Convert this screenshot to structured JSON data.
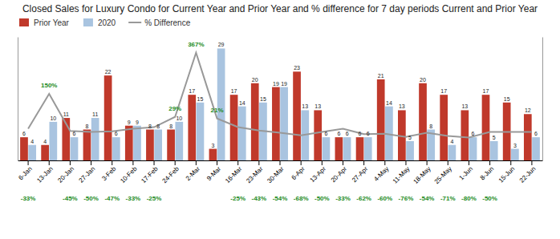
{
  "chart_data": {
    "type": "bar",
    "title": "Closed Sales for Luxury Condo for Current Year and Prior Year and % difference for 7 day periods Current and Prior Year",
    "categories": [
      "6-Jan",
      "13-Jan",
      "20-Jan",
      "27-Jan",
      "3-Feb",
      "10-Feb",
      "17-Feb",
      "24-Feb",
      "2-Mar",
      "9-Mar",
      "16-Mar",
      "23-Mar",
      "30-Mar",
      "6-Apr",
      "13-Apr",
      "20-Apr",
      "27-Apr",
      "4-May",
      "11-May",
      "18-May",
      "25-May",
      "1-Jun",
      "8-Jun",
      "15-Jun",
      "22-Jun"
    ],
    "series": [
      {
        "name": "Prior Year",
        "type": "bar",
        "color": "#C0392B",
        "values": [
          6,
          4,
          11,
          8,
          22,
          9,
          8,
          8,
          17,
          3,
          17,
          20,
          19,
          23,
          13,
          6,
          6,
          21,
          13,
          20,
          17,
          13,
          17,
          15,
          12
        ]
      },
      {
        "name": "2020",
        "type": "bar",
        "color": "#A9C4E0",
        "values": [
          4,
          10,
          6,
          11,
          6,
          9,
          8,
          10,
          15,
          29,
          14,
          15,
          19,
          13,
          6,
          6,
          6,
          14,
          5,
          8,
          4,
          6,
          5,
          3,
          6
        ]
      },
      {
        "name": "% Difference",
        "type": "line",
        "axis": "y2",
        "color": "#999999",
        "values": [
          -33,
          150,
          -45,
          -50,
          -47,
          -33,
          -25,
          29,
          367,
          21,
          -25,
          -43,
          -54,
          -68,
          -50,
          -33,
          -62,
          -60,
          -76,
          -54,
          -71,
          -80,
          -50,
          -50,
          -50
        ],
        "value_labels": [
          "-33%",
          "150%",
          "-45%",
          "-50%",
          "-47%",
          "-33%",
          "-25%",
          "29%",
          "367%",
          "21%",
          "-25%",
          "-43%",
          "-54%",
          "-68%",
          "-50%",
          "-33%",
          "-62%",
          "-60%",
          "-76%",
          "-54%",
          "-71%",
          "-80%",
          "-50%",
          null,
          null
        ]
      }
    ],
    "ylim": [
      0,
      32
    ],
    "y2lim": [
      -200,
      450
    ],
    "data_labels": true,
    "tick_labels": "x",
    "legend": "top-left"
  }
}
